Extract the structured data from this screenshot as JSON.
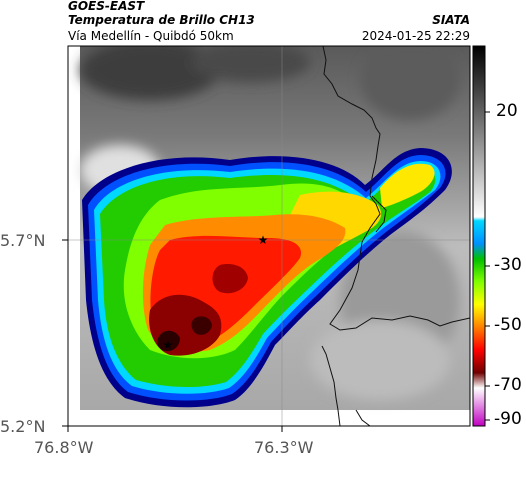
{
  "header": {
    "satellite": "GOES-EAST",
    "product": "Temperatura de Brillo CH13",
    "agency": "SIATA",
    "location": "Vía Medellín - Quibdó 50km",
    "datetime": "2024-01-25 22:29"
  },
  "map": {
    "lat_ticks": [
      "5.7°N",
      "5.2°N"
    ],
    "lon_ticks": [
      "76.8°W",
      "76.3°W"
    ],
    "gridlines": true,
    "markers": [
      {
        "name": "star-marker",
        "symbol": "★"
      },
      {
        "name": "star-marker",
        "symbol": "★"
      }
    ],
    "colorbar": {
      "ticks": [
        "20",
        "-30",
        "-50",
        "-70",
        "-90"
      ],
      "colors": [
        "#000000",
        "#ffffff",
        "#00c8ff",
        "#00ff00",
        "#ffff00",
        "#ff0000",
        "#800000",
        "#ffffff",
        "#ff00ff"
      ]
    }
  }
}
